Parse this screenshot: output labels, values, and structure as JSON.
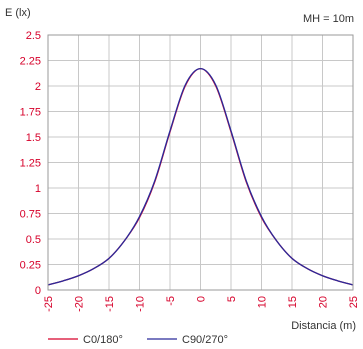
{
  "chart_data": {
    "type": "line",
    "ylabel": "E (lx)",
    "xlabel": "Distancia (m)",
    "annotation": "MH = 10m",
    "xlim": [
      -25,
      25
    ],
    "ylim": [
      0,
      2.5
    ],
    "grid": true,
    "legend_position": "bottom-left",
    "x_ticks": [
      "-25",
      "-20",
      "-15",
      "-10",
      "-5",
      "0",
      "5",
      "10",
      "15",
      "20",
      "25"
    ],
    "y_ticks": [
      "0",
      "0.25",
      "0.5",
      "0.75",
      "1",
      "1.25",
      "1.5",
      "1.75",
      "2",
      "2.25",
      "2.5"
    ],
    "tick_color": "#d6002a",
    "series": [
      {
        "name": "C0/180°",
        "color": "#d6002a",
        "x": [
          -25,
          -22.5,
          -20,
          -17.5,
          -15,
          -12.5,
          -10,
          -7.5,
          -5,
          -2.5,
          0,
          2.5,
          5,
          7.5,
          10,
          12.5,
          15,
          17.5,
          20,
          22.5,
          25
        ],
        "y": [
          0.05,
          0.09,
          0.14,
          0.21,
          0.31,
          0.48,
          0.71,
          1.06,
          1.55,
          2.0,
          2.17,
          2.0,
          1.55,
          1.06,
          0.71,
          0.48,
          0.31,
          0.21,
          0.14,
          0.09,
          0.05
        ]
      },
      {
        "name": "C90/270°",
        "color": "#2a2a9a",
        "x": [
          -25,
          -22.5,
          -20,
          -17.5,
          -15,
          -12.5,
          -10,
          -7.5,
          -5,
          -2.5,
          0,
          2.5,
          5,
          7.5,
          10,
          12.5,
          15,
          17.5,
          20,
          22.5,
          25
        ],
        "y": [
          0.05,
          0.09,
          0.14,
          0.21,
          0.31,
          0.48,
          0.72,
          1.07,
          1.56,
          2.01,
          2.17,
          2.01,
          1.56,
          1.07,
          0.72,
          0.48,
          0.31,
          0.21,
          0.14,
          0.09,
          0.05
        ]
      }
    ]
  }
}
